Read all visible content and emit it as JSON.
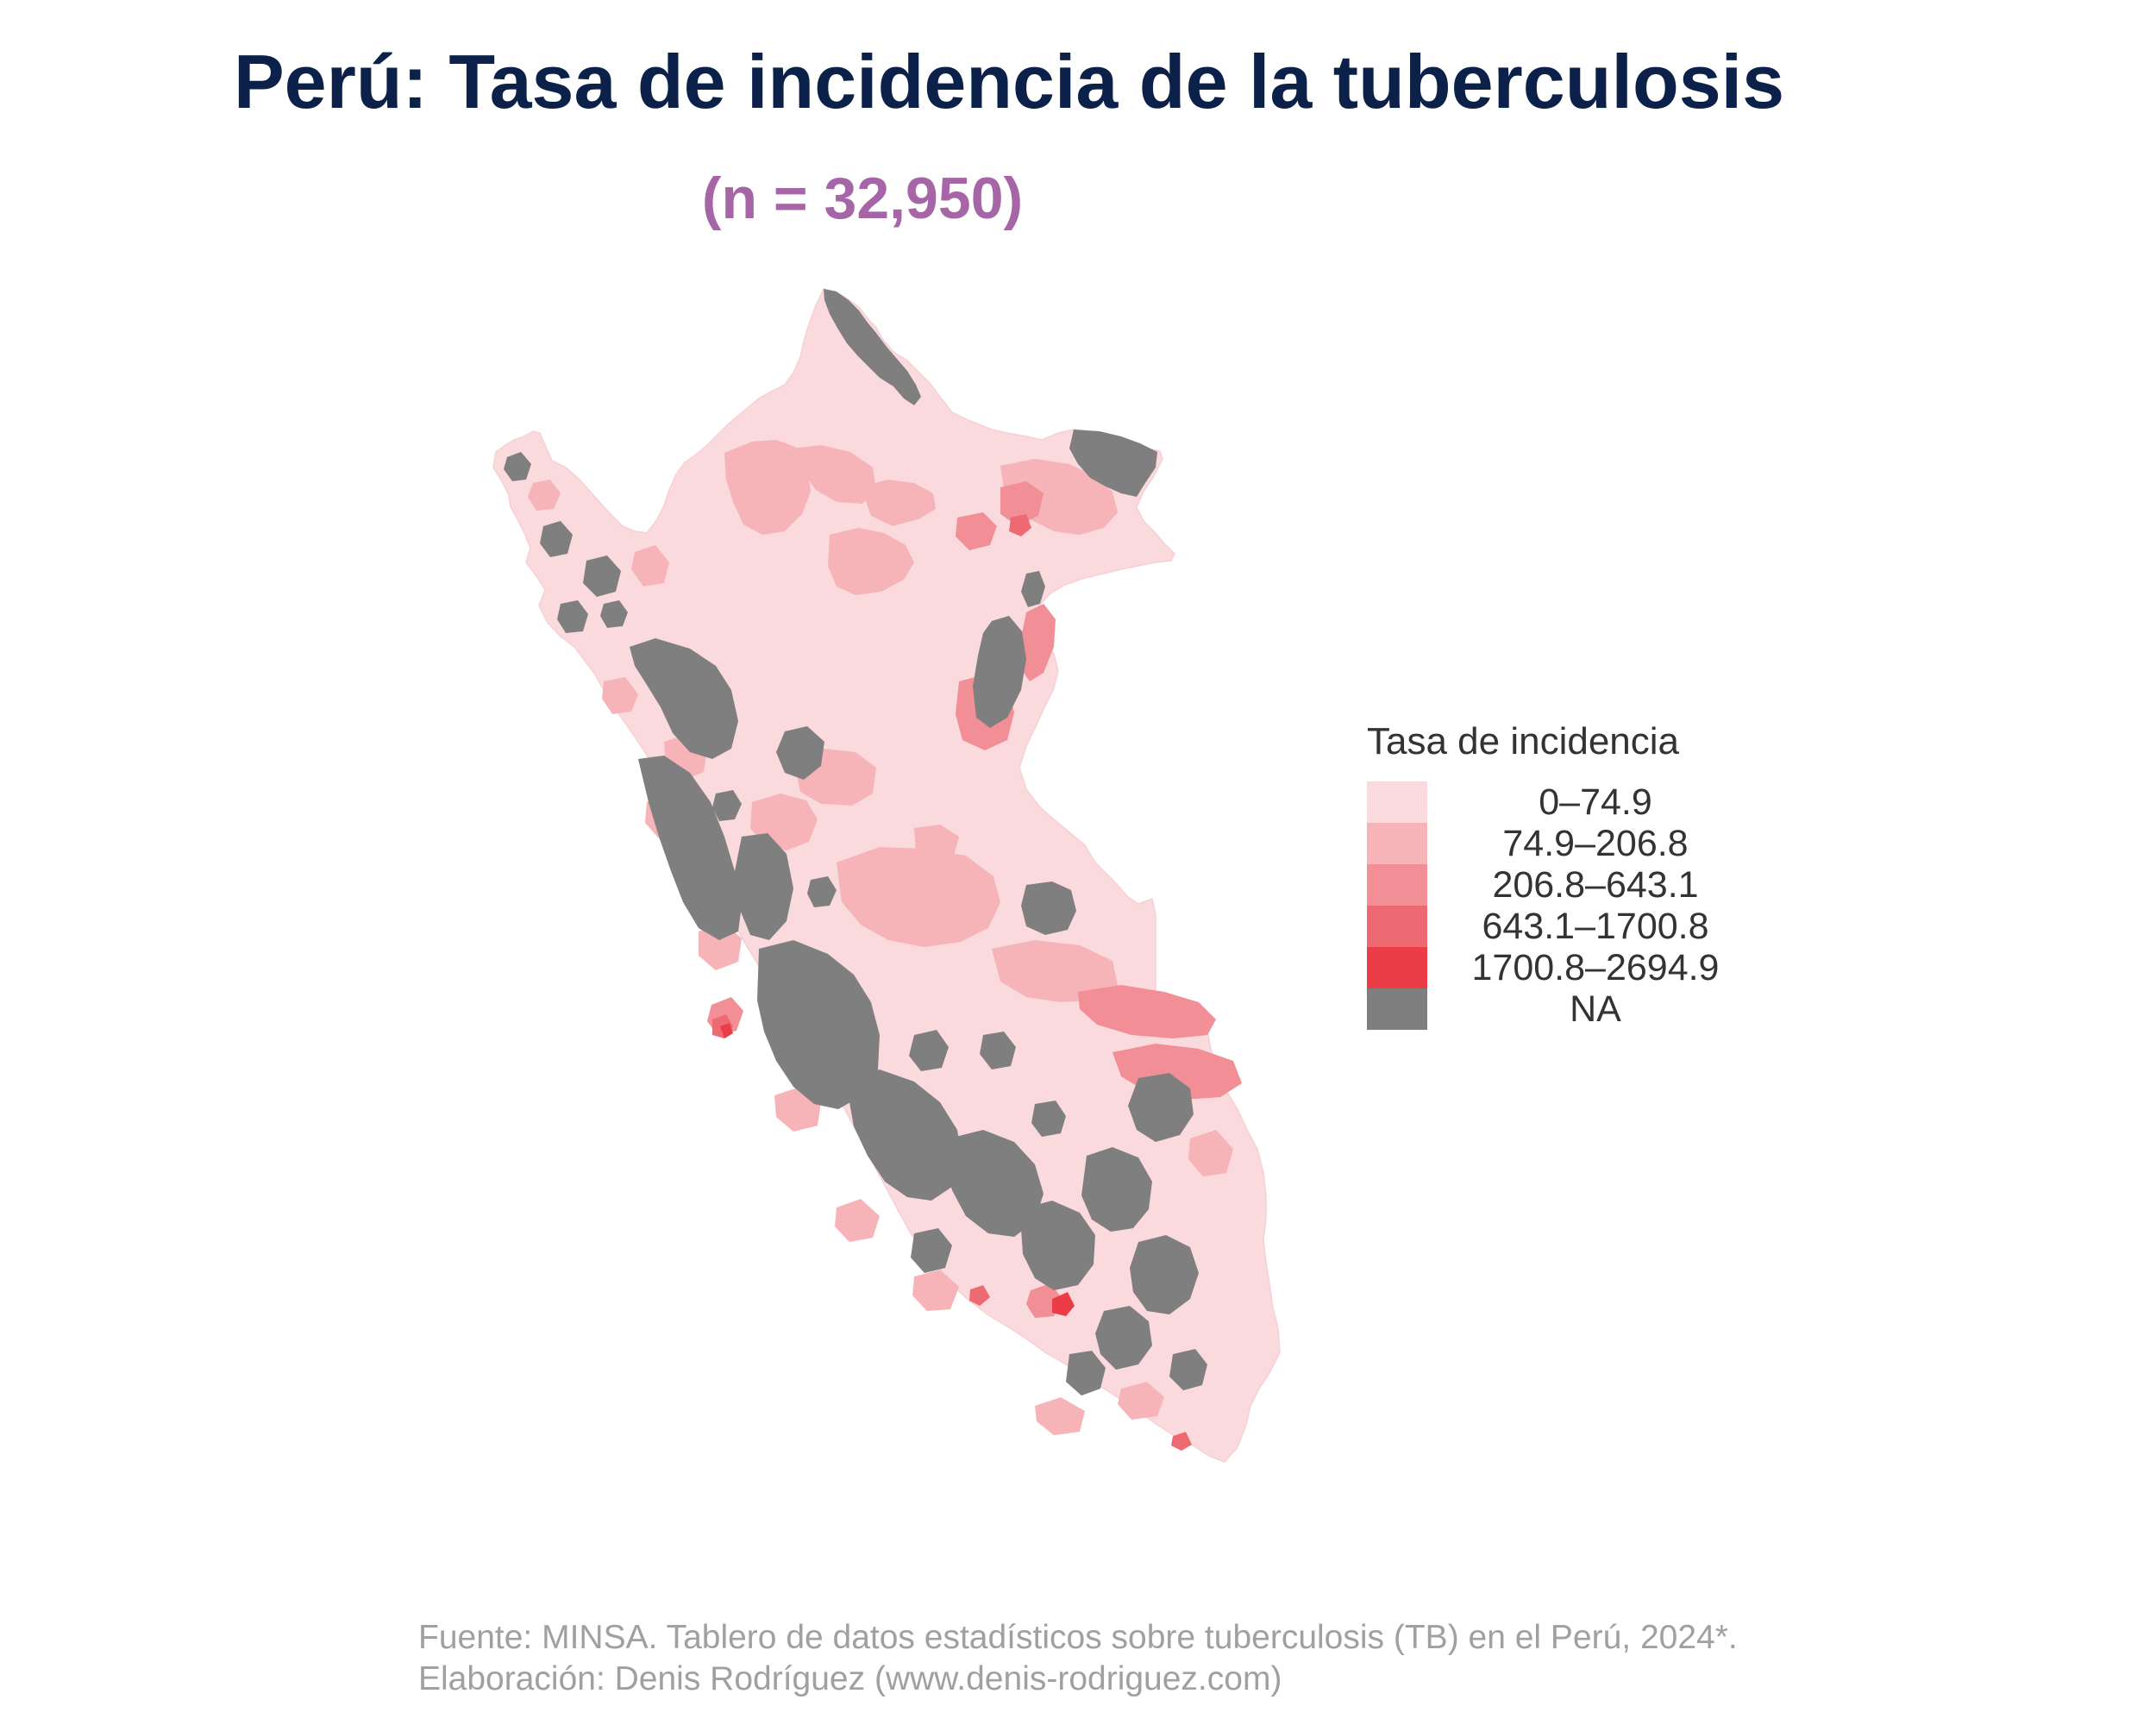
{
  "title": "Perú: Tasa de incidencia de la tuberculosis",
  "subtitle": "(n = 32,950)",
  "legend": {
    "title": "Tasa de incidencia",
    "items": [
      {
        "label": "0–74.9",
        "color": "#fadadd"
      },
      {
        "label": "74.9–206.8",
        "color": "#f6b3b8"
      },
      {
        "label": "206.8–643.1",
        "color": "#f28e95"
      },
      {
        "label": "643.1–1700.8",
        "color": "#ee6a73"
      },
      {
        "label": "1700.8–2694.9",
        "color": "#ea3d48"
      },
      {
        "label": "NA",
        "color": "#7f7f7f"
      }
    ]
  },
  "caption": {
    "line1": "Fuente: MINSA. Tablero de datos estadísticos sobre tuberculosis (TB) en el Perú, 2024*.",
    "line2": "Elaboración: Denis Rodríguez (www.denis-rodriguez.com)"
  },
  "colors": {
    "title": "#0c2149",
    "subtitle": "#a665a6",
    "caption": "#a0a0a0",
    "base_fill": "#fadadd",
    "na_fill": "#7f7f7f"
  }
}
